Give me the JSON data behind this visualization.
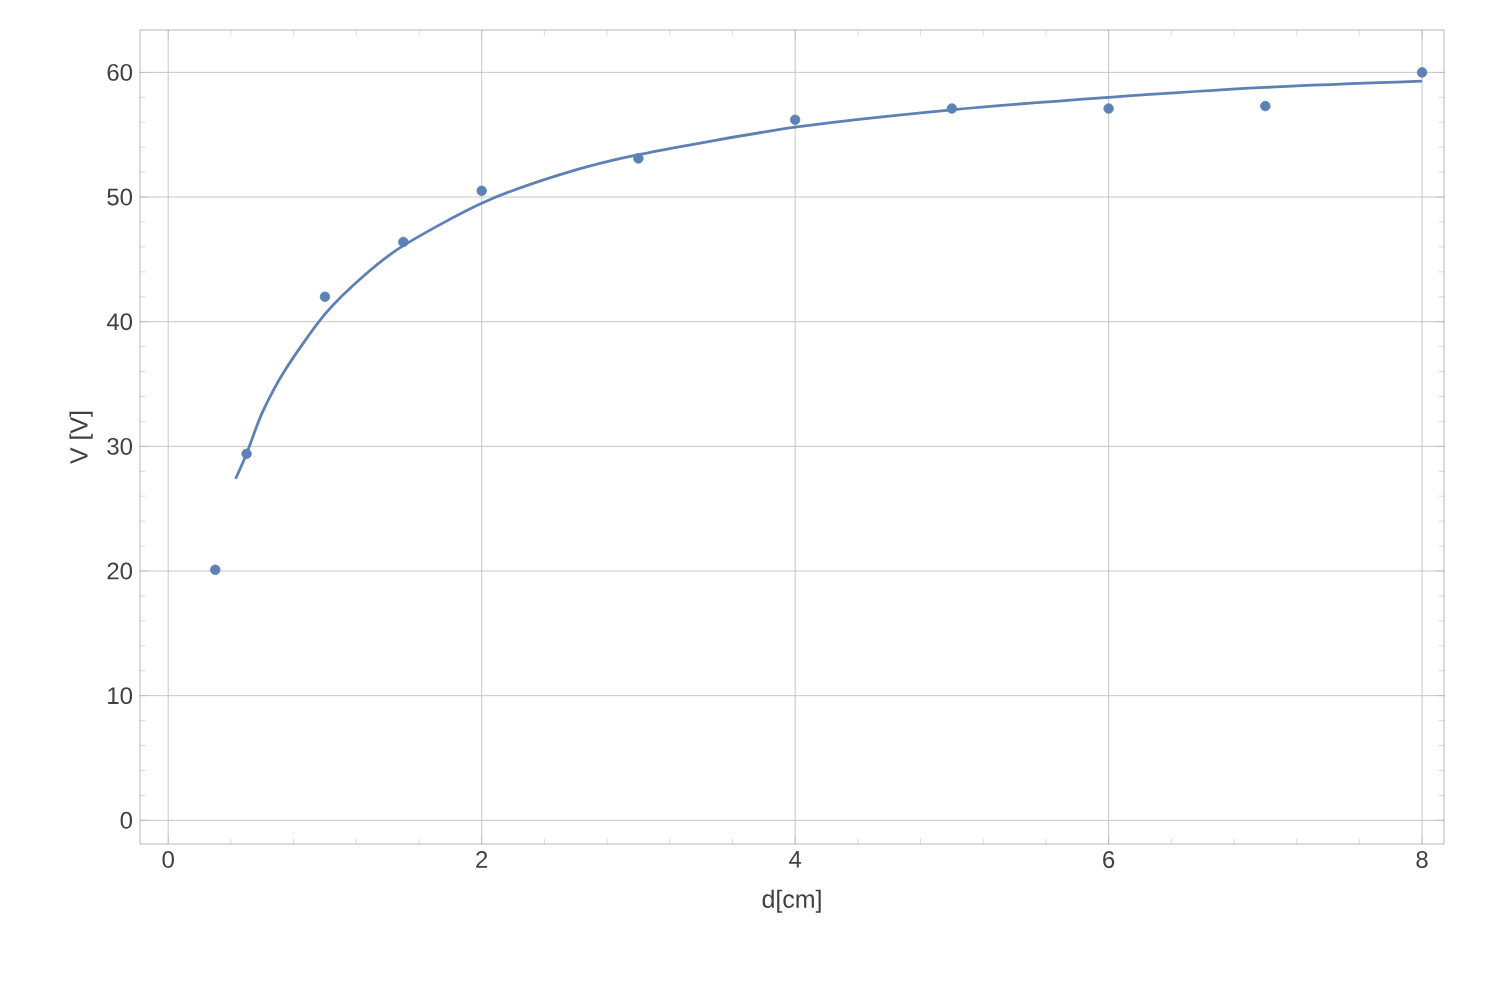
{
  "chart_data": {
    "type": "scatter",
    "xlabel": "d[cm]",
    "ylabel": "V [V]",
    "xlim": [
      -0.18,
      8.14
    ],
    "ylim": [
      -1.9,
      63.4
    ],
    "xticks": [
      0,
      2,
      4,
      6,
      8
    ],
    "yticks": [
      0,
      10,
      20,
      30,
      40,
      50,
      60
    ],
    "grid": true,
    "marker": "circle",
    "series": [
      {
        "color": "#5e81b5",
        "x": [
          0.3,
          0.5,
          1,
          1.5,
          2,
          3,
          4,
          5,
          6,
          7,
          8
        ],
        "values": [
          20.1,
          29.4,
          42.0,
          46.4,
          50.5,
          53.1,
          56.2,
          57.1,
          57.1,
          57.3,
          60.0
        ]
      },
      {
        "type": "line",
        "color": "#5e81b5",
        "marker": "none",
        "line_style": "solid",
        "x": [
          0.43,
          0.5,
          0.6,
          0.75,
          1,
          1.25,
          1.5,
          2,
          2.5,
          3,
          4,
          5,
          6,
          7,
          8
        ],
        "values": [
          27.4,
          29.4,
          32.7,
          36.2,
          40.6,
          43.7,
          46.1,
          49.5,
          51.8,
          53.4,
          55.6,
          57.0,
          58.0,
          58.8,
          59.3
        ]
      }
    ]
  }
}
